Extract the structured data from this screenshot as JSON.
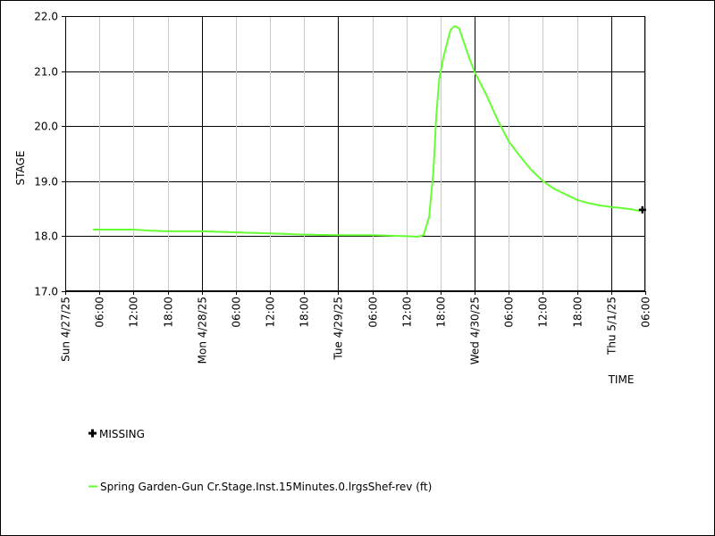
{
  "chart_data": {
    "type": "line",
    "xlabel": "TIME",
    "ylabel": "STAGE",
    "ylim": [
      17.0,
      22.0
    ],
    "xlim": [
      "2025-04-27T00:00",
      "2025-05-01T06:00"
    ],
    "y_ticks": [
      "17.0",
      "18.0",
      "19.0",
      "20.0",
      "21.0",
      "22.0"
    ],
    "x_ticks": [
      {
        "t": "2025-04-27T00:00",
        "label": "Sun 4/27/25",
        "major": true
      },
      {
        "t": "2025-04-27T06:00",
        "label": "06:00",
        "major": false
      },
      {
        "t": "2025-04-27T12:00",
        "label": "12:00",
        "major": false
      },
      {
        "t": "2025-04-27T18:00",
        "label": "18:00",
        "major": false
      },
      {
        "t": "2025-04-28T00:00",
        "label": "Mon 4/28/25",
        "major": true
      },
      {
        "t": "2025-04-28T06:00",
        "label": "06:00",
        "major": false
      },
      {
        "t": "2025-04-28T12:00",
        "label": "12:00",
        "major": false
      },
      {
        "t": "2025-04-28T18:00",
        "label": "18:00",
        "major": false
      },
      {
        "t": "2025-04-29T00:00",
        "label": "Tue 4/29/25",
        "major": true
      },
      {
        "t": "2025-04-29T06:00",
        "label": "06:00",
        "major": false
      },
      {
        "t": "2025-04-29T12:00",
        "label": "12:00",
        "major": false
      },
      {
        "t": "2025-04-29T18:00",
        "label": "18:00",
        "major": false
      },
      {
        "t": "2025-04-30T00:00",
        "label": "Wed 4/30/25",
        "major": true
      },
      {
        "t": "2025-04-30T06:00",
        "label": "06:00",
        "major": false
      },
      {
        "t": "2025-04-30T12:00",
        "label": "12:00",
        "major": false
      },
      {
        "t": "2025-04-30T18:00",
        "label": "18:00",
        "major": false
      },
      {
        "t": "2025-05-01T00:00",
        "label": "Thu 5/1/25",
        "major": true
      },
      {
        "t": "2025-05-01T06:00",
        "label": "06:00",
        "major": false
      }
    ],
    "series": [
      {
        "name": "Spring Garden-Gun Cr.Stage.Inst.15Minutes.0.lrgsShef-rev (ft)",
        "color": "#66ff33",
        "points": [
          [
            "2025-04-27T05:00",
            18.12
          ],
          [
            "2025-04-27T12:00",
            18.12
          ],
          [
            "2025-04-27T15:00",
            18.1
          ],
          [
            "2025-04-27T18:00",
            18.09
          ],
          [
            "2025-04-28T00:00",
            18.09
          ],
          [
            "2025-04-28T06:00",
            18.07
          ],
          [
            "2025-04-28T12:00",
            18.05
          ],
          [
            "2025-04-28T18:00",
            18.03
          ],
          [
            "2025-04-29T00:00",
            18.02
          ],
          [
            "2025-04-29T06:00",
            18.02
          ],
          [
            "2025-04-29T12:00",
            18.0
          ],
          [
            "2025-04-29T14:00",
            17.99
          ],
          [
            "2025-04-29T15:00",
            18.02
          ],
          [
            "2025-04-29T16:00",
            18.35
          ],
          [
            "2025-04-29T16:45",
            19.2
          ],
          [
            "2025-04-29T17:15",
            20.2
          ],
          [
            "2025-04-29T17:45",
            20.85
          ],
          [
            "2025-04-29T18:30",
            21.25
          ],
          [
            "2025-04-29T19:00",
            21.45
          ],
          [
            "2025-04-29T19:45",
            21.75
          ],
          [
            "2025-04-29T20:30",
            21.82
          ],
          [
            "2025-04-29T21:15",
            21.78
          ],
          [
            "2025-04-29T22:00",
            21.55
          ],
          [
            "2025-04-29T23:00",
            21.25
          ],
          [
            "2025-04-30T00:00",
            20.98
          ],
          [
            "2025-04-30T02:00",
            20.58
          ],
          [
            "2025-04-30T04:00",
            20.12
          ],
          [
            "2025-04-30T06:00",
            19.72
          ],
          [
            "2025-04-30T08:00",
            19.45
          ],
          [
            "2025-04-30T10:00",
            19.2
          ],
          [
            "2025-04-30T12:00",
            19.0
          ],
          [
            "2025-04-30T14:00",
            18.86
          ],
          [
            "2025-04-30T16:00",
            18.76
          ],
          [
            "2025-04-30T18:00",
            18.66
          ],
          [
            "2025-04-30T20:00",
            18.6
          ],
          [
            "2025-04-30T22:00",
            18.56
          ],
          [
            "2025-05-01T00:00",
            18.53
          ],
          [
            "2025-05-01T02:00",
            18.51
          ],
          [
            "2025-05-01T04:00",
            18.48
          ],
          [
            "2025-05-01T05:00",
            18.46
          ]
        ]
      }
    ],
    "missing": {
      "label": "MISSING",
      "points": [
        [
          "2025-05-01T05:30",
          18.48
        ]
      ]
    },
    "grid": true,
    "legend_position": "bottom-left"
  }
}
